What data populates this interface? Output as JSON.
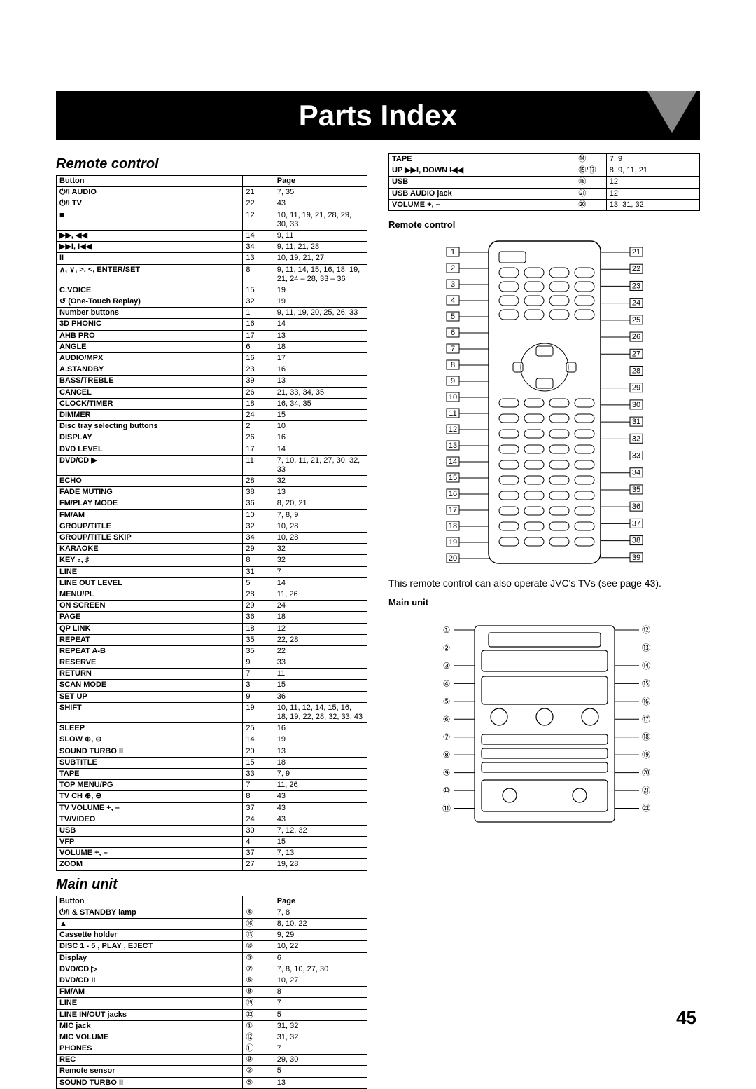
{
  "title": "Parts Index",
  "page_number": "45",
  "sections": {
    "remote_heading": "Remote control",
    "main_heading": "Main unit",
    "diagram_remote_label": "Remote control",
    "diagram_main_label": "Main unit",
    "caption": "This remote control can also operate JVC's TVs (see page 43)."
  },
  "table_headers": {
    "button": "Button",
    "page": "Page"
  },
  "remote_table": [
    [
      "⏻/I AUDIO",
      "21",
      "7, 35"
    ],
    [
      "⏻/I TV",
      "22",
      "43"
    ],
    [
      "■",
      "12",
      "10, 11, 19, 21, 28, 29, 30, 33"
    ],
    [
      "▶▶, ◀◀",
      "14",
      "9, 11"
    ],
    [
      "▶▶I, I◀◀",
      "34",
      "9, 11, 21, 28"
    ],
    [
      "II",
      "13",
      "10, 19, 21, 27"
    ],
    [
      "∧, ∨, >, <, ENTER/SET",
      "8",
      "9, 11, 14, 15, 16, 18, 19, 21, 24 – 28, 33 – 36"
    ],
    [
      "C.VOICE",
      "15",
      "19"
    ],
    [
      "↺ (One-Touch Replay)",
      "32",
      "19"
    ],
    [
      "Number buttons",
      "1",
      "9, 11, 19, 20, 25, 26, 33"
    ],
    [
      "3D PHONIC",
      "16",
      "14"
    ],
    [
      "AHB PRO",
      "17",
      "13"
    ],
    [
      "ANGLE",
      "6",
      "18"
    ],
    [
      "AUDIO/MPX",
      "16",
      "17"
    ],
    [
      "A.STANDBY",
      "23",
      "16"
    ],
    [
      "BASS/TREBLE",
      "39",
      "13"
    ],
    [
      "CANCEL",
      "26",
      "21, 33, 34, 35"
    ],
    [
      "CLOCK/TIMER",
      "18",
      "16, 34, 35"
    ],
    [
      "DIMMER",
      "24",
      "15"
    ],
    [
      "Disc tray selecting buttons",
      "2",
      "10"
    ],
    [
      "DISPLAY",
      "26",
      "16"
    ],
    [
      "DVD LEVEL",
      "17",
      "14"
    ],
    [
      "DVD/CD ▶",
      "11",
      "7, 10, 11, 21, 27, 30, 32, 33"
    ],
    [
      "ECHO",
      "28",
      "32"
    ],
    [
      "FADE MUTING",
      "38",
      "13"
    ],
    [
      "FM/PLAY MODE",
      "36",
      "8, 20, 21"
    ],
    [
      "FM/AM",
      "10",
      "7, 8, 9"
    ],
    [
      "GROUP/TITLE",
      "32",
      "10, 28"
    ],
    [
      "GROUP/TITLE SKIP",
      "34",
      "10, 28"
    ],
    [
      "KARAOKE",
      "29",
      "32"
    ],
    [
      "KEY ♭, ♯",
      "8",
      "32"
    ],
    [
      "LINE",
      "31",
      "7"
    ],
    [
      "LINE OUT LEVEL",
      "5",
      "14"
    ],
    [
      "MENU/PL",
      "28",
      "11, 26"
    ],
    [
      "ON SCREEN",
      "29",
      "24"
    ],
    [
      "PAGE",
      "36",
      "18"
    ],
    [
      "QP LINK",
      "18",
      "12"
    ],
    [
      "REPEAT",
      "35",
      "22, 28"
    ],
    [
      "REPEAT A-B",
      "35",
      "22"
    ],
    [
      "RESERVE",
      "9",
      "33"
    ],
    [
      "RETURN",
      "7",
      "11"
    ],
    [
      "SCAN MODE",
      "3",
      "15"
    ],
    [
      "SET UP",
      "9",
      "36"
    ],
    [
      "SHIFT",
      "19",
      "10, 11, 12, 14, 15, 16, 18, 19, 22, 28, 32, 33, 43"
    ],
    [
      "SLEEP",
      "25",
      "16"
    ],
    [
      "SLOW ⊕, ⊖",
      "14",
      "19"
    ],
    [
      "SOUND TURBO II",
      "20",
      "13"
    ],
    [
      "SUBTITLE",
      "15",
      "18"
    ],
    [
      "TAPE",
      "33",
      "7, 9"
    ],
    [
      "TOP MENU/PG",
      "7",
      "11, 26"
    ],
    [
      "TV CH ⊕, ⊖",
      "8",
      "43"
    ],
    [
      "TV VOLUME +, –",
      "37",
      "43"
    ],
    [
      "TV/VIDEO",
      "24",
      "43"
    ],
    [
      "USB",
      "30",
      "7, 12, 32"
    ],
    [
      "VFP",
      "4",
      "15"
    ],
    [
      "VOLUME +, –",
      "37",
      "7, 13"
    ],
    [
      "ZOOM",
      "27",
      "19, 28"
    ]
  ],
  "main_table": [
    [
      "⏻/I & STANDBY lamp",
      "④",
      "7, 8"
    ],
    [
      "▲",
      "⑯",
      "8, 10, 22"
    ],
    [
      "Cassette holder",
      "⑬",
      "9, 29"
    ],
    [
      "DISC 1 - 5 , PLAY , EJECT",
      "⑩",
      "10, 22"
    ],
    [
      "Display",
      "③",
      "6"
    ],
    [
      "DVD/CD ▷",
      "⑦",
      "7, 8, 10, 27, 30"
    ],
    [
      "DVD/CD II",
      "⑥",
      "10, 27"
    ],
    [
      "FM/AM",
      "⑧",
      "8"
    ],
    [
      "LINE",
      "⑲",
      "7"
    ],
    [
      "LINE IN/OUT jacks",
      "㉒",
      "5"
    ],
    [
      "MIC jack",
      "①",
      "31, 32"
    ],
    [
      "MIC VOLUME",
      "⑫",
      "31, 32"
    ],
    [
      "PHONES",
      "⑪",
      "7"
    ],
    [
      "REC",
      "⑨",
      "29, 30"
    ],
    [
      "Remote sensor",
      "②",
      "5"
    ],
    [
      "SOUND TURBO II",
      "⑤",
      "13"
    ]
  ],
  "right_table": [
    [
      "TAPE",
      "⑭",
      "7, 9"
    ],
    [
      "UP ▶▶I, DOWN I◀◀",
      "⑮/⑰",
      "8, 9, 11, 21"
    ],
    [
      "USB",
      "⑱",
      "12"
    ],
    [
      "USB AUDIO jack",
      "㉑",
      "12"
    ],
    [
      "VOLUME +, –",
      "⑳",
      "13, 31, 32"
    ]
  ],
  "remote_callouts_left": [
    "1",
    "2",
    "3",
    "4",
    "5",
    "6",
    "7",
    "8",
    "9",
    "10",
    "11",
    "12",
    "13",
    "14",
    "15",
    "16",
    "17",
    "18",
    "19",
    "20"
  ],
  "remote_callouts_right": [
    "21",
    "22",
    "23",
    "24",
    "25",
    "26",
    "27",
    "28",
    "29",
    "30",
    "31",
    "32",
    "33",
    "34",
    "35",
    "36",
    "37",
    "38",
    "39"
  ],
  "unit_callouts_left": [
    "①",
    "②",
    "③",
    "④",
    "⑤",
    "⑥",
    "⑦",
    "⑧",
    "⑨",
    "⑩",
    "⑪"
  ],
  "unit_callouts_right": [
    "⑫",
    "⑬",
    "⑭",
    "⑮",
    "⑯",
    "⑰",
    "⑱",
    "⑲",
    "⑳",
    "㉑",
    "㉒"
  ]
}
